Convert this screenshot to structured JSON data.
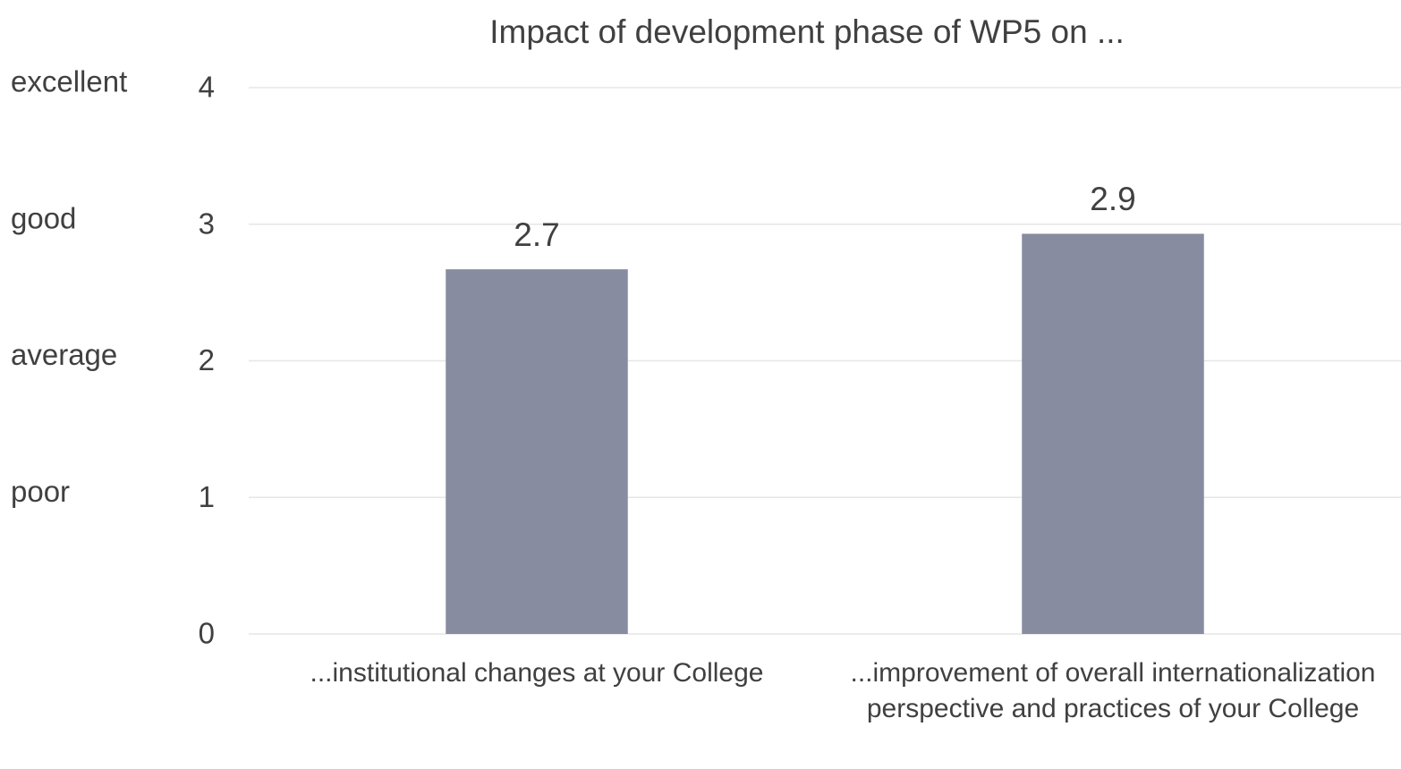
{
  "chart_data": {
    "type": "bar",
    "title": "Impact of development phase of WP5 on ...",
    "categories": [
      "...institutional changes at your College",
      "...improvement of overall internationalization perspective and practices of your College"
    ],
    "values": [
      2.67,
      2.93
    ],
    "value_labels": [
      "2.7",
      "2.9"
    ],
    "color": "#878ca0",
    "ylim": [
      0,
      4
    ],
    "yticks": [
      0,
      1,
      2,
      3,
      4
    ],
    "grid": true,
    "scale_labels": [
      {
        "value": 4,
        "label": "excellent"
      },
      {
        "value": 3,
        "label": "good"
      },
      {
        "value": 2,
        "label": "average"
      },
      {
        "value": 1,
        "label": "poor"
      }
    ]
  }
}
